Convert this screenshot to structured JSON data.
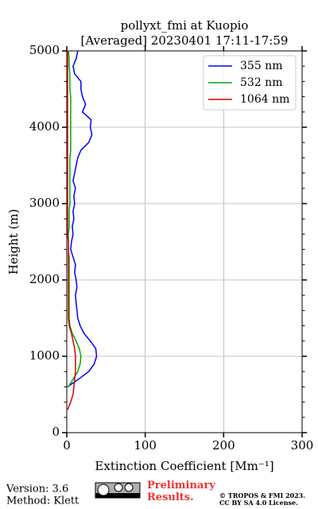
{
  "chart_data": {
    "type": "line",
    "orientation": "vertical-profile",
    "title": [
      "pollyxt_fmi at Kuopio",
      "[Averaged] 20230401 17:11-17:59"
    ],
    "xlabel": "Extinction Coefficient [Mm⁻¹]",
    "ylabel": "Height (m)",
    "xlim": [
      0,
      300
    ],
    "xticks": [
      0,
      100,
      200,
      300
    ],
    "ylim": [
      0,
      5000
    ],
    "yticks": [
      0,
      1000,
      2000,
      3000,
      4000,
      5000
    ],
    "yminorticks": [
      200,
      400,
      600,
      800,
      1200,
      1400,
      1600,
      1800,
      2200,
      2400,
      2600,
      2800,
      3200,
      3400,
      3600,
      3800,
      4200,
      4400,
      4600,
      4800
    ],
    "grid": true,
    "legend": "upper right",
    "y": [
      0,
      100,
      200,
      300,
      400,
      500,
      600,
      700,
      800,
      900,
      1000,
      1100,
      1200,
      1300,
      1400,
      1500,
      1600,
      1700,
      1800,
      1900,
      2000,
      2100,
      2200,
      2300,
      2400,
      2500,
      2600,
      2700,
      2800,
      2900,
      3000,
      3100,
      3200,
      3300,
      3400,
      3500,
      3600,
      3700,
      3800,
      3900,
      4000,
      4100,
      4200,
      4300,
      4400,
      4500,
      4600,
      4700,
      4800,
      4900,
      5000
    ],
    "series": [
      {
        "name": "355 nm",
        "color": "#0000ff",
        "values": [
          null,
          null,
          null,
          null,
          null,
          null,
          1,
          15,
          28,
          35,
          38,
          37,
          30,
          22,
          17,
          14,
          13,
          12,
          11,
          13,
          12,
          10,
          11,
          8,
          5,
          6,
          8,
          7,
          9,
          8,
          10,
          9,
          11,
          8,
          10,
          12,
          14,
          18,
          28,
          32,
          30,
          31,
          20,
          24,
          20,
          18,
          18,
          10,
          8,
          12,
          14
        ]
      },
      {
        "name": "532 nm",
        "color": "#00aa00",
        "values": [
          null,
          null,
          null,
          null,
          null,
          null,
          2,
          8,
          14,
          17,
          18,
          16,
          12,
          7,
          4,
          3,
          3,
          3,
          3,
          3,
          3,
          3,
          3,
          3,
          2,
          2,
          2,
          3,
          3,
          3,
          4,
          4,
          4,
          4,
          4,
          4,
          4,
          5,
          5,
          5,
          5,
          5,
          5,
          5,
          5,
          4,
          4,
          4,
          3,
          3,
          2
        ]
      },
      {
        "name": "1064 nm",
        "color": "#dd0000",
        "values": [
          null,
          null,
          null,
          1,
          5,
          8,
          9,
          10,
          11,
          11,
          11,
          10,
          8,
          6,
          3,
          2,
          2,
          2,
          2,
          2,
          2,
          2,
          2,
          2,
          2,
          2,
          1,
          1,
          1,
          1,
          1,
          1,
          1,
          1,
          1,
          1,
          1,
          1,
          1,
          1,
          1,
          1,
          1,
          1,
          1,
          1,
          1,
          1,
          1,
          1,
          1
        ]
      }
    ]
  },
  "footer": {
    "version": "Version: 3.6",
    "method": "Method: Klett",
    "preliminary": "Preliminary Results.",
    "copyright": "© TROPOS & FMI 2023.",
    "license": "CC BY SA 4.0 License."
  }
}
